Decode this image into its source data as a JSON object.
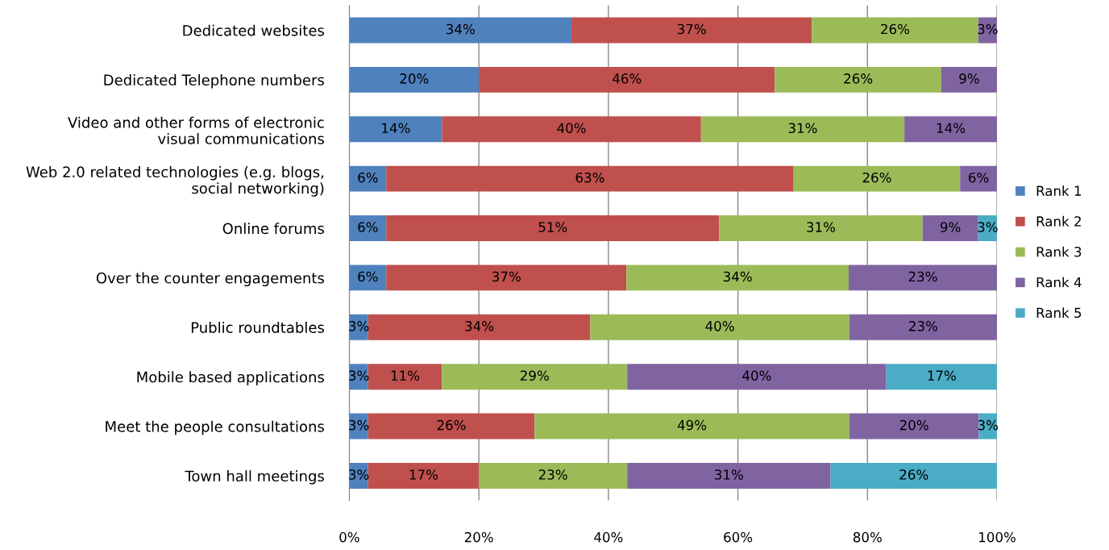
{
  "chart_data": {
    "type": "bar",
    "orientation": "horizontal",
    "stacked": true,
    "categories": [
      "Dedicated websites",
      "Dedicated Telephone numbers",
      "Video and other forms of electronic\nvisual communications",
      "Web 2.0 related technologies (e.g. blogs,\nsocial networking)",
      "Online forums",
      "Over the counter engagements",
      "Public roundtables",
      "Mobile based applications",
      "Meet the people consultations",
      "Town hall meetings"
    ],
    "series": [
      {
        "name": "Rank 1",
        "color": "#4f81bd",
        "values": [
          34.3,
          20.0,
          14.3,
          5.7,
          5.7,
          5.7,
          2.9,
          2.9,
          2.9,
          2.9
        ],
        "value_labels": [
          "34%",
          "20%",
          "14%",
          "6%",
          "6%",
          "6%",
          "3%",
          "3%",
          "3%",
          "3%"
        ]
      },
      {
        "name": "Rank 2",
        "color": "#c0504d",
        "values": [
          37.1,
          45.7,
          40.0,
          62.9,
          51.4,
          37.1,
          34.3,
          11.4,
          25.7,
          17.1
        ],
        "value_labels": [
          "37%",
          "46%",
          "40%",
          "63%",
          "51%",
          "37%",
          "34%",
          "11%",
          "26%",
          "17%"
        ]
      },
      {
        "name": "Rank 3",
        "color": "#9bbb59",
        "values": [
          25.7,
          25.7,
          31.4,
          25.7,
          31.4,
          34.3,
          40.0,
          28.6,
          48.6,
          22.9
        ],
        "value_labels": [
          "26%",
          "26%",
          "31%",
          "26%",
          "31%",
          "34%",
          "40%",
          "29%",
          "49%",
          "23%"
        ]
      },
      {
        "name": "Rank 4",
        "color": "#8064a2",
        "values": [
          2.9,
          8.6,
          14.3,
          5.7,
          8.6,
          22.9,
          22.8,
          40.0,
          20.0,
          31.4
        ],
        "value_labels": [
          "3%",
          "9%",
          "14%",
          "6%",
          "9%",
          "23%",
          "23%",
          "40%",
          "20%",
          "31%"
        ]
      },
      {
        "name": "Rank 5",
        "color": "#4bacc6",
        "values": [
          null,
          null,
          null,
          null,
          2.9,
          null,
          null,
          17.1,
          2.8,
          25.7
        ],
        "value_labels": [
          null,
          null,
          null,
          null,
          "3%",
          null,
          null,
          "17%",
          "3%",
          "26%"
        ]
      }
    ],
    "xlim": [
      0,
      100
    ],
    "xticks": [
      {
        "value": 0,
        "label": "0%"
      },
      {
        "value": 20,
        "label": "20%"
      },
      {
        "value": 40,
        "label": "40%"
      },
      {
        "value": 60,
        "label": "60%"
      },
      {
        "value": 80,
        "label": "80%"
      },
      {
        "value": 100,
        "label": "100%"
      }
    ],
    "grid": "x",
    "legend": "right"
  }
}
